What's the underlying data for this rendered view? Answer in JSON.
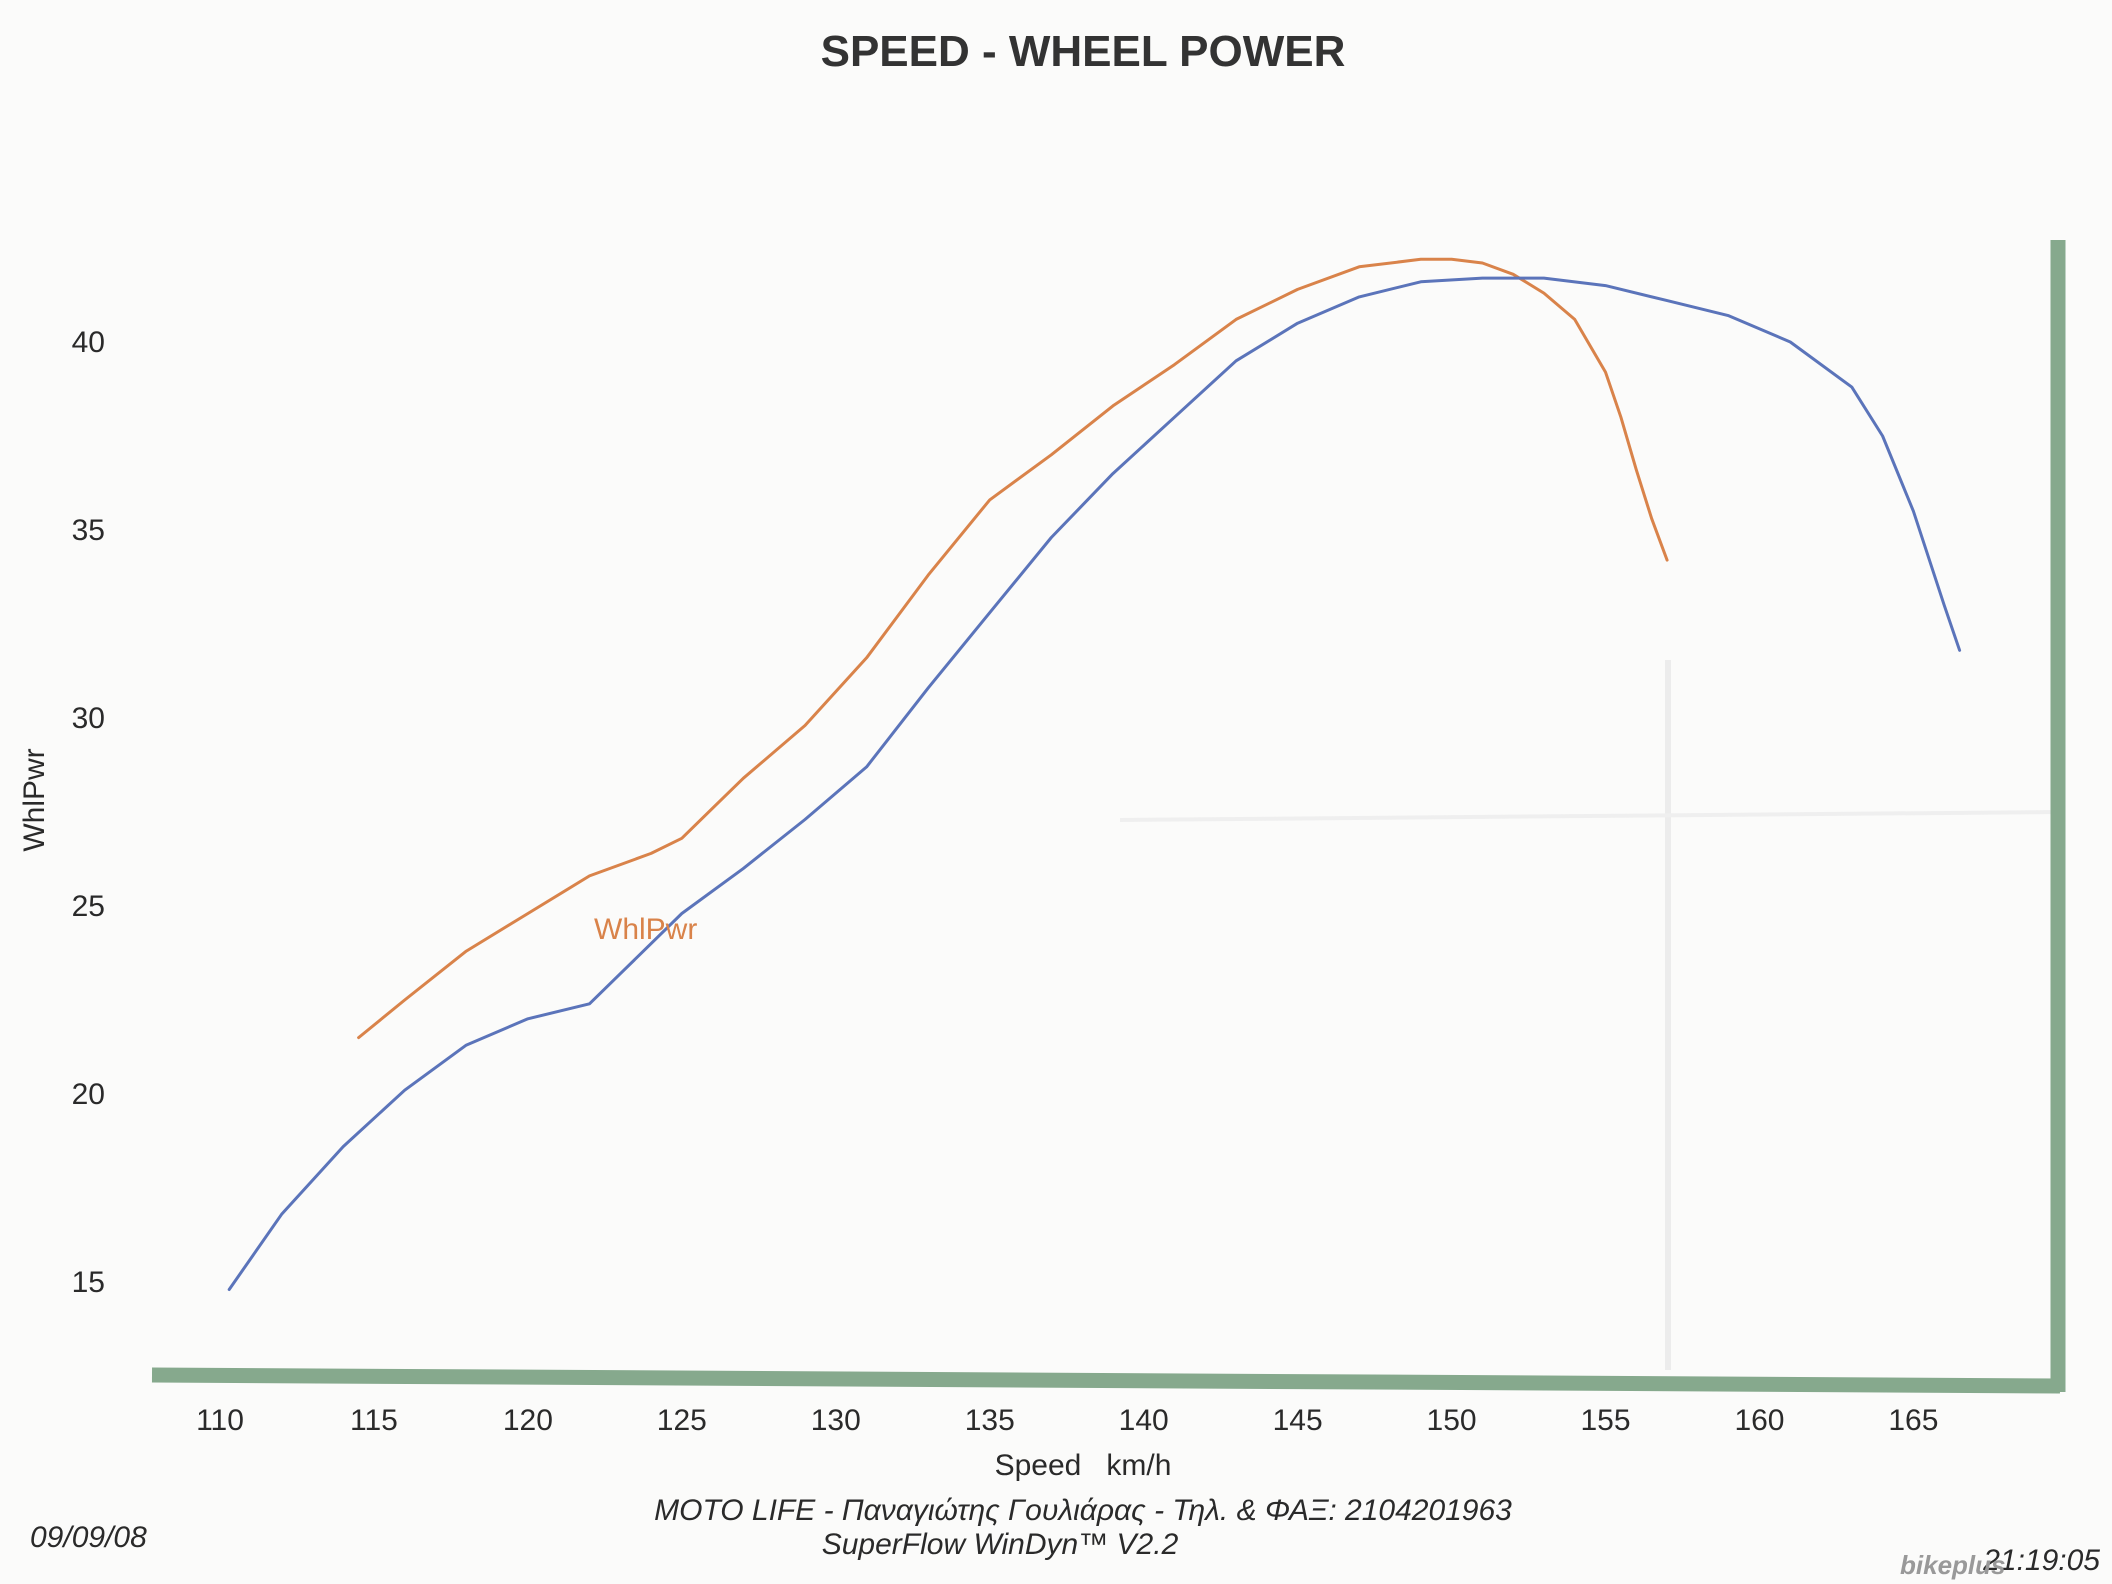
{
  "chart_data": {
    "type": "line",
    "title": "SPEED - WHEEL POWER",
    "xlabel": "Speed   km/h",
    "ylabel": "WhlPwr",
    "xlim": [
      110,
      167
    ],
    "ylim": [
      12.5,
      42.5
    ],
    "xticks": [
      110,
      115,
      120,
      125,
      130,
      135,
      140,
      145,
      150,
      155,
      160,
      165
    ],
    "yticks": [
      15,
      20,
      25,
      30,
      35,
      40
    ],
    "grid": false,
    "series_label": "WhlPwr",
    "series": [
      {
        "color": "#d9834a",
        "x": [
          114.5,
          116,
          118,
          120,
          122,
          124,
          125,
          126,
          127,
          129,
          131,
          133,
          135,
          137,
          139,
          141,
          143,
          145,
          147,
          149,
          150,
          151,
          152,
          153,
          154,
          155,
          155.5,
          156,
          156.5,
          157
        ],
        "y": [
          21.5,
          22.5,
          23.8,
          24.8,
          25.8,
          26.4,
          26.8,
          27.6,
          28.4,
          29.8,
          31.6,
          33.8,
          35.8,
          37.0,
          38.3,
          39.4,
          40.6,
          41.4,
          42.0,
          42.2,
          42.2,
          42.1,
          41.8,
          41.3,
          40.6,
          39.2,
          38.0,
          36.6,
          35.3,
          34.2
        ]
      },
      {
        "color": "#5b74ba",
        "x": [
          110.3,
          112,
          114,
          116,
          118,
          120,
          122,
          123,
          124,
          125,
          127,
          129,
          131,
          133,
          135,
          137,
          139,
          141,
          143,
          145,
          147,
          149,
          151,
          153,
          155,
          157,
          159,
          161,
          163,
          164,
          165,
          166,
          166.5
        ],
        "y": [
          14.8,
          16.8,
          18.6,
          20.1,
          21.3,
          22.0,
          22.4,
          23.2,
          24.0,
          24.8,
          26.0,
          27.3,
          28.7,
          30.8,
          32.8,
          34.8,
          36.5,
          38.0,
          39.5,
          40.5,
          41.2,
          41.6,
          41.7,
          41.7,
          41.5,
          41.1,
          40.7,
          40.0,
          38.8,
          37.5,
          35.5,
          33.0,
          31.8
        ]
      }
    ],
    "footer": {
      "date": "09/09/08",
      "time": "21:19:05",
      "line1": "MOTO LIFE - Παναγιώτης Γουλιάρας - Τηλ. & ΦΑΞ: 2104201963",
      "line2": "SuperFlow WinDyn™ V2.2"
    },
    "watermark": "bikeplus"
  }
}
